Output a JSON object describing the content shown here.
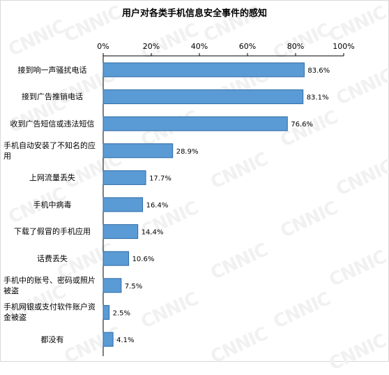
{
  "chart_data": {
    "type": "bar",
    "orientation": "horizontal",
    "title": "用户对各类手机信息安全事件的感知",
    "categories": [
      "接到响一声骚扰电话",
      "接到广告推销电话",
      "收到广告短信或违法短信",
      "手机自动安装了不知名的应用",
      "上网流量丢失",
      "手机中病毒",
      "下载了假冒的手机应用",
      "话费丢失",
      "手机中的账号、密码或照片被盗",
      "手机网银或支付软件账户资金被盗",
      "都没有"
    ],
    "values": [
      83.6,
      83.1,
      76.6,
      28.9,
      17.7,
      16.4,
      14.4,
      10.6,
      7.5,
      2.5,
      4.1
    ],
    "value_labels": [
      "83.6%",
      "83.1%",
      "76.6%",
      "28.9%",
      "17.7%",
      "16.4%",
      "14.4%",
      "10.6%",
      "7.5%",
      "2.5%",
      "4.1%"
    ],
    "xticks": [
      "0%",
      "20%",
      "40%",
      "60%",
      "80%",
      "100%"
    ],
    "xlim": [
      0,
      100
    ],
    "axis_position": "top",
    "grid": false,
    "bar_color": "#5b9bd5",
    "bar_border_color": "#2e6aa6"
  },
  "watermark": "CNNIC"
}
